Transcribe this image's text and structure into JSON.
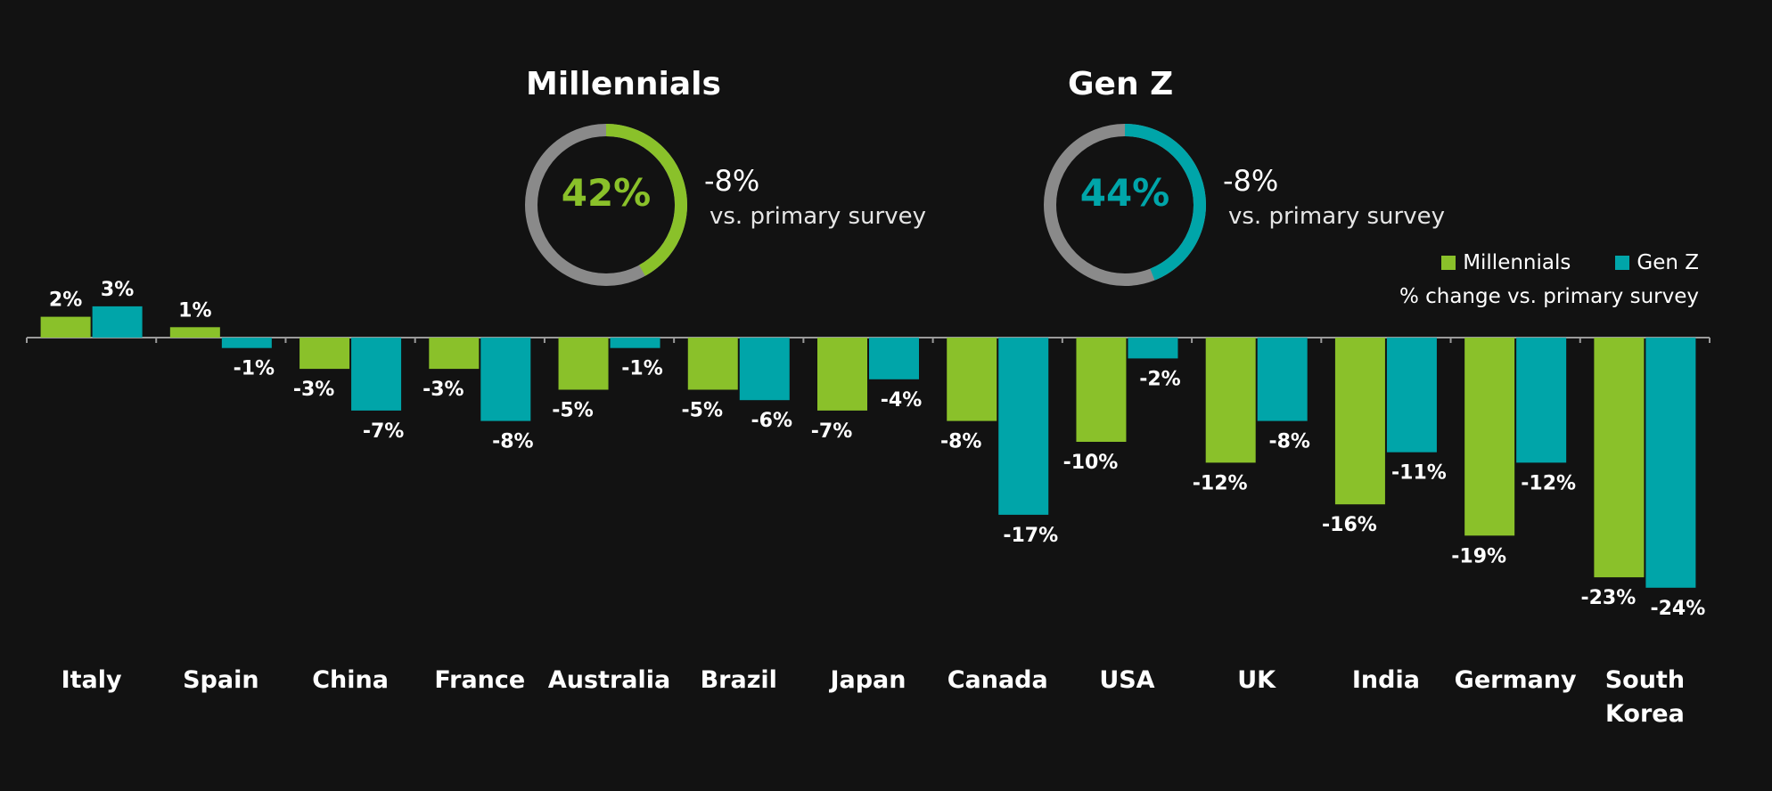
{
  "colors": {
    "millennials": "#8ac12a",
    "genz": "#00a5a9",
    "ring": "#8a8a8a",
    "background": "#121212"
  },
  "donuts": [
    {
      "title": "Millennials",
      "value": 42,
      "label": "42%",
      "change": "-8%",
      "note": "vs. primary survey",
      "color": "#8ac12a"
    },
    {
      "title": "Gen Z",
      "value": 44,
      "label": "44%",
      "change": "-8%",
      "note": "vs. primary survey",
      "color": "#00a5a9"
    }
  ],
  "legend": {
    "items": [
      {
        "name": "Millennials",
        "color": "#8ac12a"
      },
      {
        "name": "Gen Z",
        "color": "#00a5a9"
      }
    ],
    "note": "% change vs. primary survey"
  },
  "chart_data": {
    "type": "bar",
    "categories": [
      [
        "Italy"
      ],
      [
        "Spain"
      ],
      [
        "China"
      ],
      [
        "France"
      ],
      [
        "Australia"
      ],
      [
        "Brazil"
      ],
      [
        "Japan"
      ],
      [
        "Canada"
      ],
      [
        "USA"
      ],
      [
        "UK"
      ],
      [
        "India"
      ],
      [
        "Germany"
      ],
      [
        "South",
        "Korea"
      ]
    ],
    "series": [
      {
        "name": "Millennials",
        "color": "#8ac12a",
        "values": [
          2,
          1,
          -3,
          -3,
          -5,
          -5,
          -7,
          -8,
          -10,
          -12,
          -16,
          -19,
          -23
        ]
      },
      {
        "name": "Gen Z",
        "color": "#00a5a9",
        "values": [
          3,
          -1,
          -7,
          -8,
          -1,
          -6,
          -4,
          -17,
          -2,
          -8,
          -11,
          -12,
          -24
        ]
      }
    ],
    "ylim": [
      -25,
      3
    ],
    "value_suffix": "%",
    "grid": false,
    "legend_position": "top-right"
  }
}
